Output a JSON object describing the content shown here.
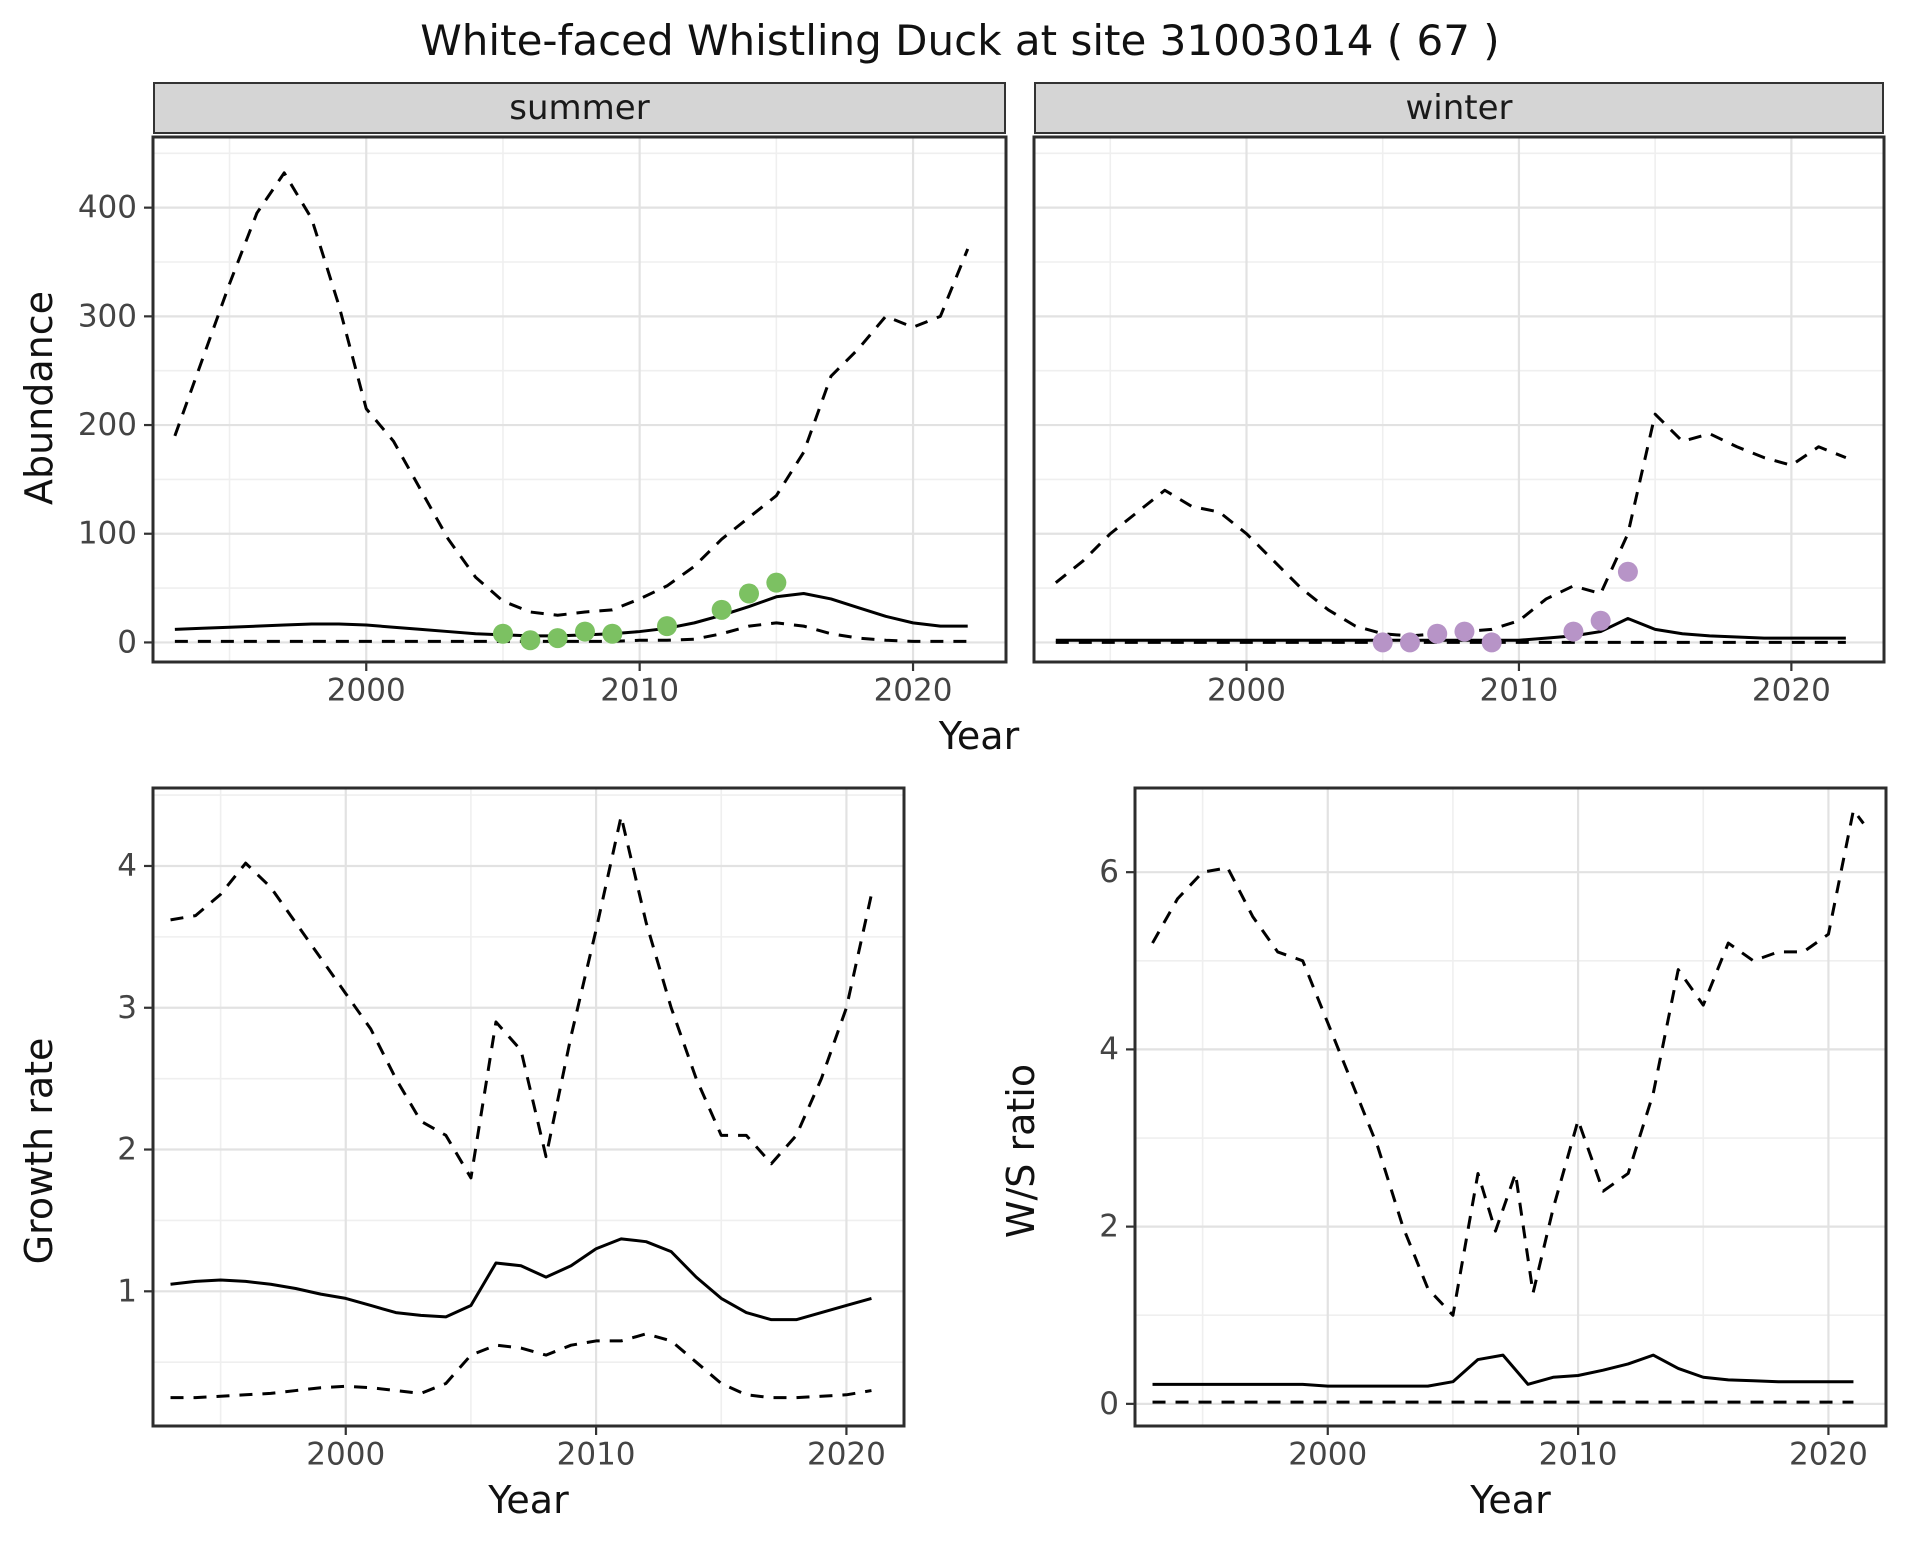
{
  "title": "White-faced Whistling Duck at site 31003014 ( 67 )",
  "colors": {
    "summer_points": "#7cc162",
    "winter_points": "#b794c7",
    "line": "#000000",
    "grid_major": "#e2e2e2",
    "grid_minor": "#efefef",
    "strip_background": "#d5d5d5",
    "panel_border": "#2d2d2d"
  },
  "chart_data": [
    {
      "type": "line",
      "facet_label": "summer",
      "xlabel": "Year",
      "ylabel": "Abundance",
      "xlim": [
        1992.2,
        2023.4
      ],
      "ylim": [
        -18,
        465
      ],
      "xticks": [
        2000,
        2010,
        2020
      ],
      "yticks": [
        0,
        100,
        200,
        300,
        400
      ],
      "show_ytick_labels": true,
      "grid": true,
      "legend": "none",
      "series": [
        {
          "name": "upper_ci",
          "style": "dashed",
          "x": [
            1993,
            1994,
            1995,
            1996,
            1997,
            1998,
            1999,
            2000,
            2001,
            2002,
            2003,
            2004,
            2005,
            2006,
            2007,
            2008,
            2009,
            2010,
            2011,
            2012,
            2013,
            2014,
            2015,
            2016,
            2017,
            2018,
            2019,
            2020,
            2021,
            2022
          ],
          "y": [
            190,
            260,
            330,
            395,
            432,
            390,
            310,
            215,
            185,
            140,
            95,
            60,
            38,
            28,
            25,
            28,
            30,
            40,
            52,
            70,
            95,
            115,
            135,
            175,
            245,
            270,
            300,
            290,
            300,
            362
          ]
        },
        {
          "name": "median",
          "style": "solid",
          "x": [
            1993,
            1994,
            1995,
            1996,
            1997,
            1998,
            1999,
            2000,
            2001,
            2002,
            2003,
            2004,
            2005,
            2006,
            2007,
            2008,
            2009,
            2010,
            2011,
            2012,
            2013,
            2014,
            2015,
            2016,
            2017,
            2018,
            2019,
            2020,
            2021,
            2022
          ],
          "y": [
            12,
            13,
            14,
            15,
            16,
            17,
            17,
            16,
            14,
            12,
            10,
            8,
            7,
            6,
            6,
            7,
            8,
            10,
            13,
            18,
            25,
            33,
            42,
            45,
            40,
            32,
            24,
            18,
            15,
            15
          ]
        },
        {
          "name": "lower_ci",
          "style": "dashed",
          "x": [
            1993,
            1994,
            1995,
            1996,
            1997,
            1998,
            1999,
            2000,
            2001,
            2002,
            2003,
            2004,
            2005,
            2006,
            2007,
            2008,
            2009,
            2010,
            2011,
            2012,
            2013,
            2014,
            2015,
            2016,
            2017,
            2018,
            2019,
            2020,
            2021,
            2022
          ],
          "y": [
            1,
            1,
            1,
            1,
            1,
            1,
            1,
            1,
            1,
            1,
            1,
            1,
            1,
            1,
            1,
            1,
            1,
            2,
            2,
            3,
            8,
            15,
            18,
            15,
            8,
            4,
            2,
            1,
            1,
            1
          ]
        },
        {
          "name": "observed_counts",
          "style": "points",
          "color": "#7cc162",
          "x": [
            2005,
            2006,
            2007,
            2008,
            2009,
            2011,
            2013,
            2014,
            2015
          ],
          "y": [
            8,
            2,
            4,
            10,
            8,
            15,
            30,
            45,
            55
          ]
        }
      ]
    },
    {
      "type": "line",
      "facet_label": "winter",
      "xlabel": "Year",
      "ylabel": "Abundance",
      "xlim": [
        1992.2,
        2023.4
      ],
      "ylim": [
        -18,
        465
      ],
      "xticks": [
        2000,
        2010,
        2020
      ],
      "yticks": [
        0,
        100,
        200,
        300,
        400
      ],
      "show_ytick_labels": false,
      "grid": true,
      "legend": "none",
      "series": [
        {
          "name": "upper_ci",
          "style": "dashed",
          "x": [
            1993,
            1994,
            1995,
            1996,
            1997,
            1998,
            1999,
            2000,
            2001,
            2002,
            2003,
            2004,
            2005,
            2006,
            2007,
            2008,
            2009,
            2010,
            2011,
            2012,
            2013,
            2014,
            2015,
            2016,
            2017,
            2018,
            2019,
            2020,
            2021,
            2022
          ],
          "y": [
            55,
            75,
            100,
            120,
            140,
            125,
            120,
            100,
            75,
            50,
            30,
            15,
            8,
            6,
            8,
            10,
            12,
            20,
            40,
            52,
            45,
            100,
            210,
            185,
            192,
            180,
            170,
            163,
            180,
            170
          ]
        },
        {
          "name": "median",
          "style": "solid",
          "x": [
            1993,
            1994,
            1995,
            1996,
            1997,
            1998,
            1999,
            2000,
            2001,
            2002,
            2003,
            2004,
            2005,
            2006,
            2007,
            2008,
            2009,
            2010,
            2011,
            2012,
            2013,
            2014,
            2015,
            2016,
            2017,
            2018,
            2019,
            2020,
            2021,
            2022
          ],
          "y": [
            2,
            2,
            2,
            2,
            2,
            2,
            2,
            2,
            2,
            2,
            2,
            2,
            2,
            2,
            2,
            2,
            2,
            2,
            4,
            6,
            10,
            22,
            12,
            8,
            6,
            5,
            4,
            4,
            4,
            4
          ]
        },
        {
          "name": "lower_ci",
          "style": "dashed",
          "x": [
            1993,
            2022
          ],
          "y": [
            0,
            0
          ]
        },
        {
          "name": "observed_counts",
          "style": "points",
          "color": "#b794c7",
          "x": [
            2005,
            2006,
            2007,
            2008,
            2009,
            2012,
            2013,
            2014
          ],
          "y": [
            0,
            0,
            8,
            10,
            0,
            10,
            20,
            65
          ]
        }
      ]
    },
    {
      "type": "line",
      "facet_label": "",
      "xlabel": "Year",
      "ylabel": "Growth rate",
      "xlim": [
        1992.3,
        2022.3
      ],
      "ylim": [
        0.05,
        4.55
      ],
      "xticks": [
        2000,
        2010,
        2020
      ],
      "yticks": [
        1,
        2,
        3,
        4
      ],
      "show_ytick_labels": true,
      "grid": true,
      "legend": "none",
      "series": [
        {
          "name": "upper_ci",
          "style": "dashed",
          "x": [
            1993,
            1994,
            1995,
            1996,
            1997,
            1998,
            1999,
            2000,
            2001,
            2002,
            2003,
            2004,
            2005,
            2006,
            2007,
            2008,
            2009,
            2010,
            2011,
            2012,
            2013,
            2014,
            2015,
            2016,
            2017,
            2018,
            2019,
            2020,
            2021
          ],
          "y": [
            3.62,
            3.65,
            3.8,
            4.02,
            3.85,
            3.6,
            3.35,
            3.1,
            2.85,
            2.5,
            2.2,
            2.1,
            1.8,
            2.9,
            2.7,
            1.95,
            2.8,
            3.55,
            4.35,
            3.6,
            3.0,
            2.5,
            2.1,
            2.1,
            1.9,
            2.1,
            2.5,
            3.0,
            3.8
          ]
        },
        {
          "name": "median",
          "style": "solid",
          "x": [
            1993,
            1994,
            1995,
            1996,
            1997,
            1998,
            1999,
            2000,
            2001,
            2002,
            2003,
            2004,
            2005,
            2006,
            2007,
            2008,
            2009,
            2010,
            2011,
            2012,
            2013,
            2014,
            2015,
            2016,
            2017,
            2018,
            2019,
            2020,
            2021
          ],
          "y": [
            1.05,
            1.07,
            1.08,
            1.07,
            1.05,
            1.02,
            0.98,
            0.95,
            0.9,
            0.85,
            0.83,
            0.82,
            0.9,
            1.2,
            1.18,
            1.1,
            1.18,
            1.3,
            1.37,
            1.35,
            1.28,
            1.1,
            0.95,
            0.85,
            0.8,
            0.8,
            0.85,
            0.9,
            0.95
          ]
        },
        {
          "name": "lower_ci",
          "style": "dashed",
          "x": [
            1993,
            1994,
            1995,
            1996,
            1997,
            1998,
            1999,
            2000,
            2001,
            2002,
            2003,
            2004,
            2005,
            2006,
            2007,
            2008,
            2009,
            2010,
            2011,
            2012,
            2013,
            2014,
            2015,
            2016,
            2017,
            2018,
            2019,
            2020,
            2021
          ],
          "y": [
            0.25,
            0.25,
            0.26,
            0.27,
            0.28,
            0.3,
            0.32,
            0.33,
            0.32,
            0.3,
            0.28,
            0.35,
            0.55,
            0.62,
            0.6,
            0.55,
            0.62,
            0.65,
            0.65,
            0.7,
            0.65,
            0.5,
            0.35,
            0.27,
            0.25,
            0.25,
            0.26,
            0.27,
            0.3
          ]
        }
      ]
    },
    {
      "type": "line",
      "facet_label": "",
      "xlabel": "Year",
      "ylabel": "W/S ratio",
      "xlim": [
        1992.3,
        2022.3
      ],
      "ylim": [
        -0.25,
        6.95
      ],
      "xticks": [
        2000,
        2010,
        2020
      ],
      "yticks": [
        0,
        2,
        4,
        6
      ],
      "show_ytick_labels": true,
      "grid": true,
      "legend": "none",
      "series": [
        {
          "name": "upper_ci",
          "style": "dashed",
          "x": [
            1993,
            1994,
            1995,
            1996,
            1997,
            1998,
            1999,
            2000,
            2001,
            2002,
            2003,
            2004,
            2005,
            2006,
            2006.7,
            2007.5,
            2008.2,
            2009,
            2010,
            2011,
            2012,
            2013,
            2014,
            2015,
            2016,
            2017,
            2018,
            2019,
            2020,
            2021,
            2021.4
          ],
          "y": [
            5.2,
            5.7,
            6.0,
            6.05,
            5.5,
            5.1,
            5.0,
            4.3,
            3.6,
            2.9,
            2.0,
            1.3,
            1.0,
            2.6,
            1.95,
            2.6,
            1.25,
            2.2,
            3.2,
            2.4,
            2.6,
            3.5,
            4.9,
            4.5,
            5.2,
            5.0,
            5.1,
            5.1,
            5.3,
            6.7,
            6.55
          ]
        },
        {
          "name": "median",
          "style": "solid",
          "x": [
            1993,
            1994,
            1995,
            1996,
            1997,
            1998,
            1999,
            2000,
            2001,
            2002,
            2003,
            2004,
            2005,
            2006,
            2007,
            2008,
            2009,
            2010,
            2011,
            2012,
            2013,
            2014,
            2015,
            2016,
            2017,
            2018,
            2019,
            2020,
            2021
          ],
          "y": [
            0.22,
            0.22,
            0.22,
            0.22,
            0.22,
            0.22,
            0.22,
            0.2,
            0.2,
            0.2,
            0.2,
            0.2,
            0.25,
            0.5,
            0.55,
            0.22,
            0.3,
            0.32,
            0.38,
            0.45,
            0.55,
            0.4,
            0.3,
            0.27,
            0.26,
            0.25,
            0.25,
            0.25,
            0.25
          ]
        },
        {
          "name": "lower_ci",
          "style": "dashed",
          "x": [
            1993,
            2021
          ],
          "y": [
            0.02,
            0.02
          ]
        }
      ]
    }
  ]
}
